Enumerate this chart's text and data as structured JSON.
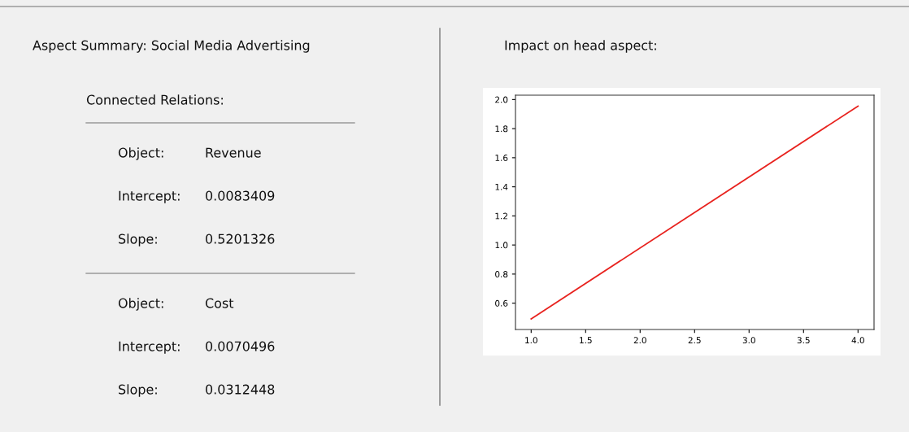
{
  "chart_data": [
    {
      "type": "other",
      "title": "Aspect Summary: Social Media Advertising",
      "subtitle": "Connected Relations:",
      "annotations": [
        "Object:",
        "Revenue",
        "Intercept:",
        "0.0083409",
        "Slope:",
        "0.5201326",
        "Object:",
        "Cost",
        "Intercept:",
        "0.0070496",
        "Slope:",
        "0.0312448"
      ]
    },
    {
      "type": "line",
      "title": "Impact on head aspect:",
      "x": [
        1.0,
        4.0
      ],
      "series": [
        {
          "color": "#e8231f",
          "values": [
            0.492,
            1.955
          ]
        }
      ],
      "xlim": [
        0.856,
        4.147
      ],
      "ylim": [
        0.419,
        2.03
      ],
      "xticks": [
        {
          "value": 1,
          "label": "1.0"
        },
        1.5,
        {
          "value": 2,
          "label": "2.0"
        },
        2.5,
        {
          "value": 3,
          "label": "3.0"
        },
        3.5,
        {
          "value": 4,
          "label": "4.0"
        }
      ],
      "yticks": [
        0.6,
        0.8,
        {
          "value": 1,
          "label": "1.0"
        },
        1.2,
        1.4,
        1.6,
        1.8,
        {
          "value": 2,
          "label": "2.0"
        }
      ],
      "grid": false,
      "legend": false,
      "marker": "none",
      "line_style": "solid"
    }
  ]
}
